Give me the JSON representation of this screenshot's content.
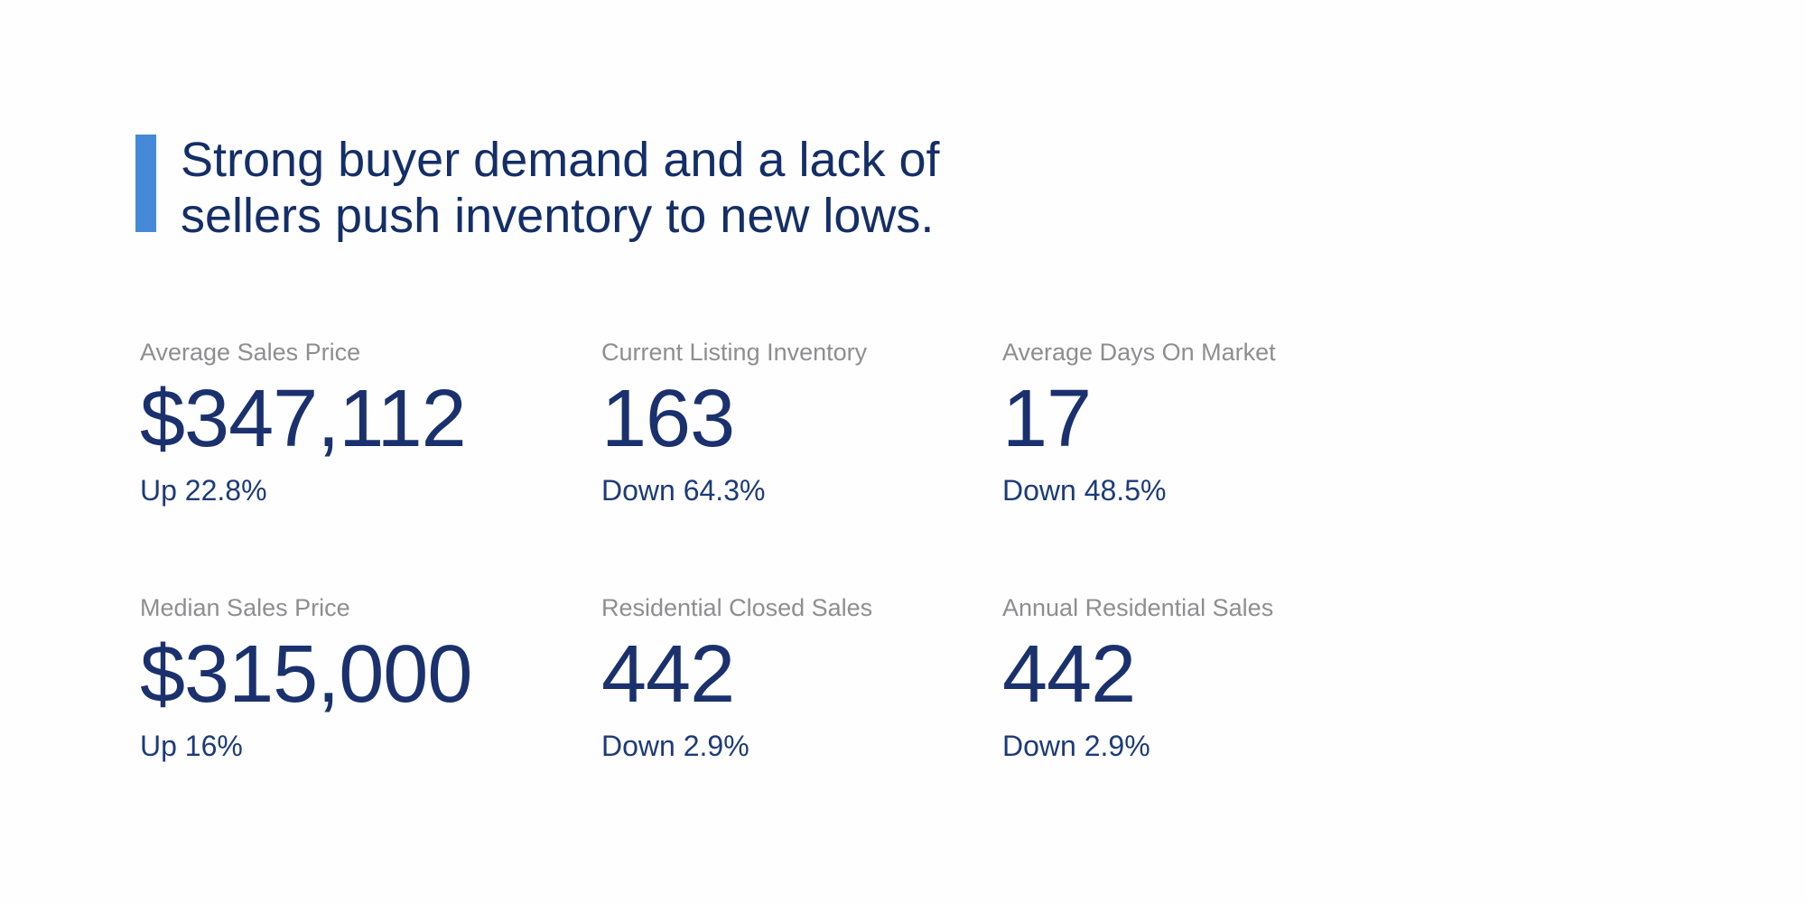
{
  "headline": {
    "full_text": "Strong buyer demand and a lack of sellers push inventory to new lows.",
    "lines": [
      "Strong buyer demand and a lack of",
      "sellers push inventory to new lows."
    ]
  },
  "stats": [
    {
      "label": "Average Sales Price",
      "value": "$347,112",
      "change": "Up 22.8%"
    },
    {
      "label": "Current Listing Inventory",
      "value": "163",
      "change": "Down 64.3%"
    },
    {
      "label": "Average Days On Market",
      "value": "17",
      "change": "Down 48.5%"
    },
    {
      "label": "Median Sales Price",
      "value": "$315,000",
      "change": "Up 16%"
    },
    {
      "label": "Residential Closed Sales",
      "value": "442",
      "change": "Down 2.9%"
    },
    {
      "label": "Annual Residential Sales",
      "value": "442",
      "change": "Down 2.9%"
    }
  ],
  "colors": {
    "accent_bar": "#4689d8",
    "headline_text": "#142e67",
    "stat_label": "#8e8e91",
    "stat_value": "#1a316e",
    "stat_change": "#1d3b78",
    "background": "#fefefe"
  }
}
